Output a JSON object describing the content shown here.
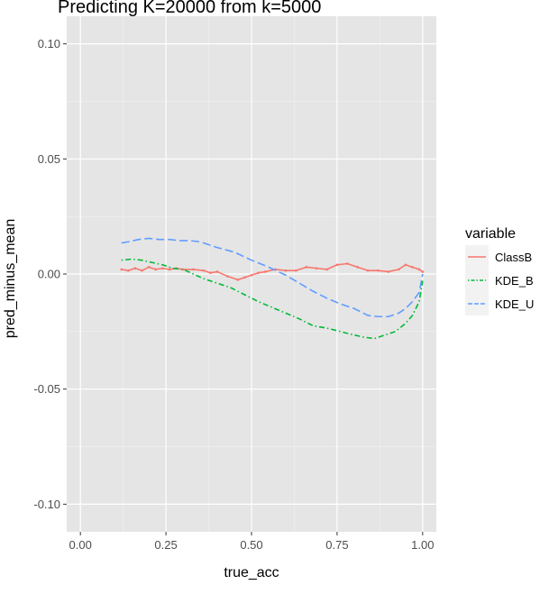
{
  "chart_data": {
    "type": "line",
    "title": "Predicting K=20000 from k=5000",
    "xlabel": "true_acc",
    "ylabel": "pred_minus_mean",
    "xlim": [
      -0.04,
      1.04
    ],
    "ylim": [
      -0.112,
      0.112
    ],
    "x_ticks": [
      0.0,
      0.25,
      0.5,
      0.75,
      1.0
    ],
    "x_tick_labels": [
      "0.00",
      "0.25",
      "0.50",
      "0.75",
      "1.00"
    ],
    "y_ticks": [
      -0.1,
      -0.05,
      0.0,
      0.05,
      0.1
    ],
    "y_tick_labels": [
      "-0.10",
      "-0.05",
      "0.00",
      "0.05",
      "0.10"
    ],
    "grid": true,
    "panel_background": "#e5e5e5",
    "legend": {
      "title": "variable",
      "position": "right",
      "entries": [
        "ClassB",
        "KDE_B",
        "KDE_U"
      ]
    },
    "series": [
      {
        "name": "ClassB",
        "color": "#f8766d",
        "dash": "solid",
        "x": [
          0.12,
          0.14,
          0.16,
          0.18,
          0.2,
          0.22,
          0.24,
          0.26,
          0.28,
          0.3,
          0.33,
          0.36,
          0.38,
          0.4,
          0.43,
          0.46,
          0.48,
          0.5,
          0.52,
          0.54,
          0.57,
          0.6,
          0.63,
          0.66,
          0.69,
          0.72,
          0.75,
          0.78,
          0.81,
          0.84,
          0.87,
          0.9,
          0.93,
          0.95,
          0.97,
          0.99,
          1.0
        ],
        "y": [
          0.002,
          0.0015,
          0.0025,
          0.0015,
          0.003,
          0.002,
          0.0025,
          0.002,
          0.0025,
          0.002,
          0.002,
          0.0015,
          0.0005,
          0.001,
          -0.001,
          -0.0025,
          -0.0015,
          -0.0005,
          0.0005,
          0.001,
          0.002,
          0.0015,
          0.0015,
          0.003,
          0.0025,
          0.002,
          0.004,
          0.0045,
          0.003,
          0.0015,
          0.0015,
          0.001,
          0.002,
          0.004,
          0.003,
          0.002,
          0.001
        ]
      },
      {
        "name": "KDE_B",
        "color": "#00ba38",
        "dash": "dotdash",
        "x": [
          0.12,
          0.15,
          0.18,
          0.21,
          0.24,
          0.27,
          0.3,
          0.33,
          0.36,
          0.4,
          0.44,
          0.48,
          0.52,
          0.56,
          0.6,
          0.64,
          0.68,
          0.72,
          0.76,
          0.8,
          0.83,
          0.86,
          0.89,
          0.92,
          0.95,
          0.97,
          0.99,
          1.0
        ],
        "y": [
          0.006,
          0.0065,
          0.006,
          0.005,
          0.004,
          0.0025,
          0.002,
          0.0,
          -0.002,
          -0.004,
          -0.006,
          -0.009,
          -0.012,
          -0.0145,
          -0.017,
          -0.0195,
          -0.0225,
          -0.0235,
          -0.025,
          -0.0265,
          -0.0275,
          -0.028,
          -0.0265,
          -0.025,
          -0.0215,
          -0.018,
          -0.012,
          -0.003
        ]
      },
      {
        "name": "KDE_U",
        "color": "#619cff",
        "dash": "longdash",
        "x": [
          0.12,
          0.14,
          0.17,
          0.2,
          0.23,
          0.26,
          0.29,
          0.32,
          0.35,
          0.4,
          0.45,
          0.5,
          0.55,
          0.6,
          0.64,
          0.68,
          0.72,
          0.76,
          0.8,
          0.84,
          0.87,
          0.9,
          0.93,
          0.95,
          0.97,
          0.99,
          1.0
        ],
        "y": [
          0.0135,
          0.014,
          0.015,
          0.0155,
          0.015,
          0.015,
          0.0145,
          0.0145,
          0.014,
          0.0115,
          0.0095,
          0.006,
          0.003,
          -0.0005,
          -0.004,
          -0.0075,
          -0.0105,
          -0.013,
          -0.015,
          -0.018,
          -0.0185,
          -0.0185,
          -0.017,
          -0.015,
          -0.012,
          -0.008,
          0.0
        ]
      }
    ]
  }
}
